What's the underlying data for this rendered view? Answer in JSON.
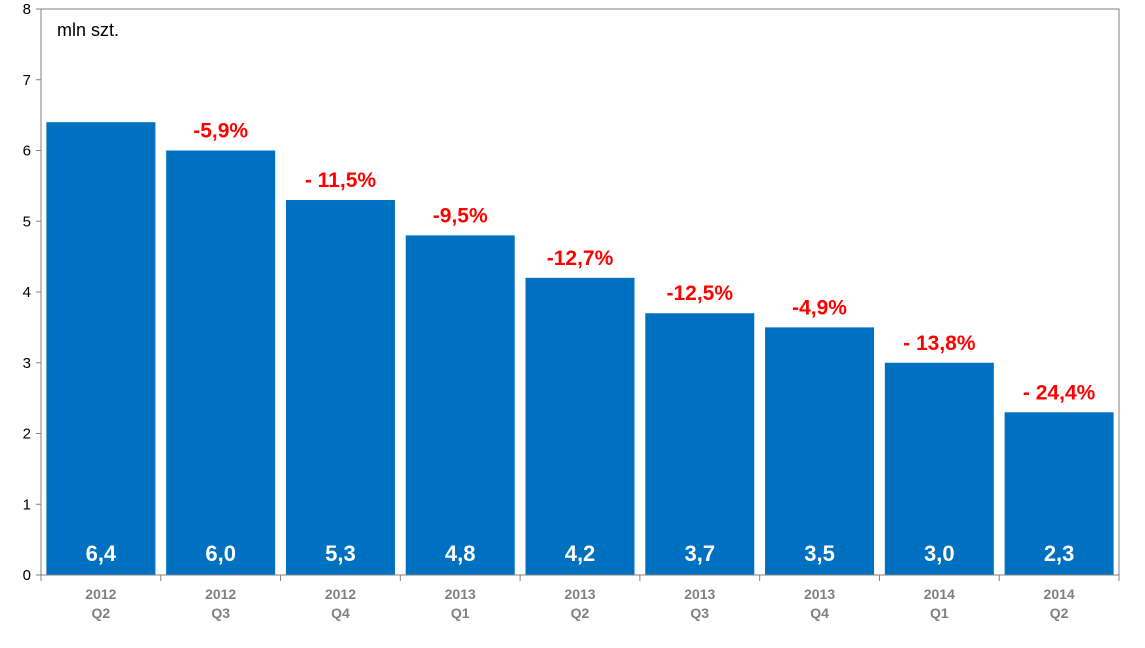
{
  "chart_data": {
    "type": "bar",
    "unit_label": "mln szt.",
    "categories": [
      [
        "2012",
        "Q2"
      ],
      [
        "2012",
        "Q3"
      ],
      [
        "2012",
        "Q4"
      ],
      [
        "2013",
        "Q1"
      ],
      [
        "2013",
        "Q2"
      ],
      [
        "2013",
        "Q3"
      ],
      [
        "2013",
        "Q4"
      ],
      [
        "2014",
        "Q1"
      ],
      [
        "2014",
        "Q2"
      ]
    ],
    "values": [
      6.4,
      6.0,
      5.3,
      4.8,
      4.2,
      3.7,
      3.5,
      3.0,
      2.3
    ],
    "value_labels": [
      "6,4",
      "6,0",
      "5,3",
      "4,8",
      "4,2",
      "3,7",
      "3,5",
      "3,0",
      "2,3"
    ],
    "annotations": [
      null,
      "-5,9%",
      "- 11,5%",
      "-9,5%",
      "-12,7%",
      "-12,5%",
      "-4,9%",
      "- 13,8%",
      "- 24,4%"
    ],
    "ylim": [
      0,
      8
    ],
    "yticks": [
      "0",
      "1",
      "2",
      "3",
      "4",
      "5",
      "6",
      "7",
      "8"
    ],
    "grid": false,
    "legend": "none",
    "bar_color": "#0070C0",
    "annotation_color": "#FF0000"
  }
}
